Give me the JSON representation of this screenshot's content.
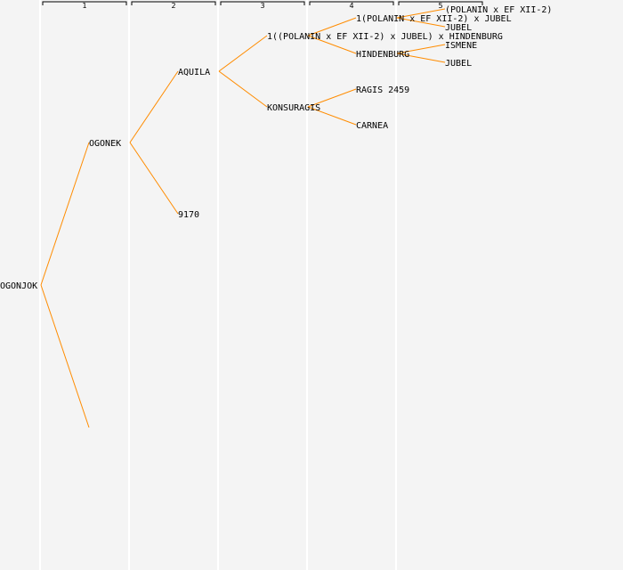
{
  "generations": [
    "1",
    "2",
    "3",
    "4",
    "5"
  ],
  "colors": {
    "background": "#f4f4f4",
    "branch": "#ff8c00",
    "text": "#000000",
    "divider": "#ffffff"
  },
  "nodes": [
    {
      "id": "n0",
      "label": "OGONJOK",
      "gen": 0
    },
    {
      "id": "n1",
      "label": "OGONEK",
      "gen": 1
    },
    {
      "id": "n2",
      "label": "",
      "gen": 1
    },
    {
      "id": "n3",
      "label": "AQUILA",
      "gen": 2
    },
    {
      "id": "n4",
      "label": "9170",
      "gen": 2
    },
    {
      "id": "n5",
      "label": "1((POLANIN x EF XII-2) x JUBEL) x HINDENBURG",
      "gen": 3
    },
    {
      "id": "n6",
      "label": "KONSURAGIS",
      "gen": 3
    },
    {
      "id": "n7",
      "label": "1(POLANIN x EF XII-2) x JUBEL",
      "gen": 4
    },
    {
      "id": "n8",
      "label": "HINDENBURG",
      "gen": 4
    },
    {
      "id": "n9",
      "label": "RAGIS 2459",
      "gen": 4
    },
    {
      "id": "n10",
      "label": "CARNEA",
      "gen": 4
    },
    {
      "id": "n11",
      "label": "(POLANIN x EF XII-2)",
      "gen": 5
    },
    {
      "id": "n12",
      "label": "JUBEL",
      "gen": 5
    },
    {
      "id": "n13",
      "label": "ISMENE",
      "gen": 5
    },
    {
      "id": "n14",
      "label": "JUBEL",
      "gen": 5
    }
  ],
  "edges": [
    [
      "n0",
      "n1"
    ],
    [
      "n0",
      "n2"
    ],
    [
      "n1",
      "n3"
    ],
    [
      "n1",
      "n4"
    ],
    [
      "n3",
      "n5"
    ],
    [
      "n3",
      "n6"
    ],
    [
      "n5",
      "n7"
    ],
    [
      "n5",
      "n8"
    ],
    [
      "n6",
      "n9"
    ],
    [
      "n6",
      "n10"
    ],
    [
      "n7",
      "n11"
    ],
    [
      "n7",
      "n12"
    ],
    [
      "n8",
      "n13"
    ],
    [
      "n8",
      "n14"
    ]
  ]
}
